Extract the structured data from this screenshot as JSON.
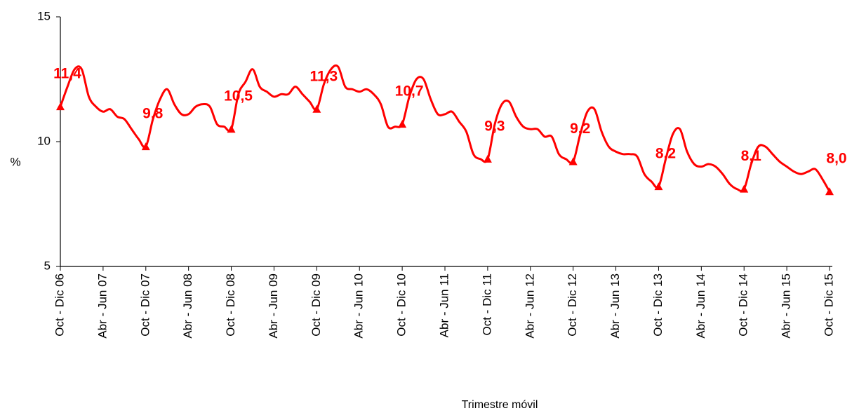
{
  "chart_data": {
    "type": "line",
    "x_label": "Trimestre móvil",
    "y_label": "%",
    "categories": [
      "Oct - Dic 06",
      null,
      null,
      null,
      null,
      null,
      "Abr - Jun 07",
      null,
      null,
      null,
      null,
      null,
      "Oct - Dic 07",
      null,
      null,
      null,
      null,
      null,
      "Abr - Jun 08",
      null,
      null,
      null,
      null,
      null,
      "Oct - Dic 08",
      null,
      null,
      null,
      null,
      null,
      "Abr - Jun 09",
      null,
      null,
      null,
      null,
      null,
      "Oct - Dic 09",
      null,
      null,
      null,
      null,
      null,
      "Abr - Jun 10",
      null,
      null,
      null,
      null,
      null,
      "Oct - Dic 10",
      null,
      null,
      null,
      null,
      null,
      "Abr - Jun 11",
      null,
      null,
      null,
      null,
      null,
      "Oct - Dic 11",
      null,
      null,
      null,
      null,
      null,
      "Abr - Jun 12",
      null,
      null,
      null,
      null,
      null,
      "Oct - Dic 12",
      null,
      null,
      null,
      null,
      null,
      "Abr - Jun 13",
      null,
      null,
      null,
      null,
      null,
      "Oct - Dic 13",
      null,
      null,
      null,
      null,
      null,
      "Abr - Jun 14",
      null,
      null,
      null,
      null,
      null,
      "Oct - Dic 14",
      null,
      null,
      null,
      null,
      null,
      "Abr - Jun 15",
      null,
      null,
      null,
      null,
      null,
      "Oct - Dic 15"
    ],
    "series": [
      {
        "color": "#ff0000",
        "values": [
          11.4,
          12.2,
          12.9,
          12.9,
          11.8,
          11.4,
          11.2,
          11.3,
          11.0,
          10.9,
          10.5,
          10.1,
          9.8,
          10.9,
          11.7,
          12.1,
          11.5,
          11.1,
          11.1,
          11.4,
          11.5,
          11.4,
          10.7,
          10.6,
          10.5,
          11.9,
          12.4,
          12.9,
          12.2,
          12.0,
          11.8,
          11.9,
          11.9,
          12.2,
          11.9,
          11.6,
          11.3,
          12.3,
          12.9,
          13.0,
          12.2,
          12.1,
          12.0,
          12.1,
          11.9,
          11.5,
          10.6,
          10.6,
          10.7,
          11.8,
          12.5,
          12.5,
          11.7,
          11.1,
          11.1,
          11.2,
          10.8,
          10.4,
          9.5,
          9.3,
          9.3,
          10.7,
          11.5,
          11.6,
          11.0,
          10.6,
          10.5,
          10.5,
          10.2,
          10.2,
          9.5,
          9.3,
          9.2,
          10.3,
          11.2,
          11.3,
          10.4,
          9.8,
          9.6,
          9.5,
          9.5,
          9.4,
          8.7,
          8.4,
          8.2,
          9.3,
          10.3,
          10.5,
          9.6,
          9.1,
          9.0,
          9.1,
          9.0,
          8.7,
          8.3,
          8.1,
          8.1,
          9.1,
          9.8,
          9.8,
          9.5,
          9.2,
          9.0,
          8.8,
          8.7,
          8.8,
          8.9,
          8.5,
          8.0
        ],
        "value_labels": [
          "11,4",
          null,
          null,
          null,
          null,
          null,
          null,
          null,
          null,
          null,
          null,
          null,
          "9,8",
          null,
          null,
          null,
          null,
          null,
          null,
          null,
          null,
          null,
          null,
          null,
          "10,5",
          null,
          null,
          null,
          null,
          null,
          null,
          null,
          null,
          null,
          null,
          null,
          "11,3",
          null,
          null,
          null,
          null,
          null,
          null,
          null,
          null,
          null,
          null,
          null,
          "10,7",
          null,
          null,
          null,
          null,
          null,
          null,
          null,
          null,
          null,
          null,
          null,
          "9,3",
          null,
          null,
          null,
          null,
          null,
          null,
          null,
          null,
          null,
          null,
          null,
          "9,2",
          null,
          null,
          null,
          null,
          null,
          null,
          null,
          null,
          null,
          null,
          null,
          "8,2",
          null,
          null,
          null,
          null,
          null,
          null,
          null,
          null,
          null,
          null,
          null,
          "8,1",
          null,
          null,
          null,
          null,
          null,
          null,
          null,
          null,
          null,
          null,
          null,
          "8,0"
        ]
      }
    ],
    "ylim": [
      5,
      15
    ],
    "yticks": [
      5,
      10,
      15
    ],
    "grid": false
  }
}
